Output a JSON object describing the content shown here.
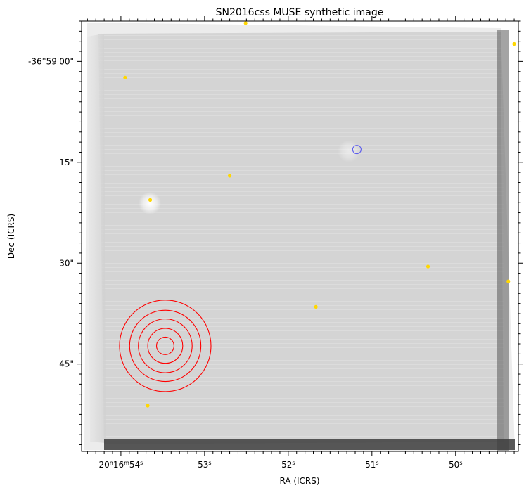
{
  "chart_data": {
    "type": "image",
    "title": "SN2016css MUSE synthetic image",
    "xlabel": "RA (ICRS)",
    "ylabel": "Dec (ICRS)",
    "colormap": "grayscale",
    "x_ticks": [
      {
        "h": "20",
        "m": "16",
        "s": "54",
        "sec": 54
      },
      {
        "s": "53",
        "sec": 53
      },
      {
        "s": "52",
        "sec": 52
      },
      {
        "s": "51",
        "sec": 51
      },
      {
        "s": "50",
        "sec": 50
      }
    ],
    "y_ticks": [
      {
        "label": "-36°59'00\"",
        "arcsec": 0
      },
      {
        "label": "15\"",
        "arcsec": 15
      },
      {
        "label": "30\"",
        "arcsec": 30
      },
      {
        "label": "45\"",
        "arcsec": 45
      }
    ],
    "x_range_sec": [
      54.47,
      49.25
    ],
    "y_range_arcsec": [
      -6.0,
      58.0
    ],
    "sources": [
      {
        "ra_sec": 52.51,
        "dec_arcsec": -5.7
      },
      {
        "ra_sec": 49.3,
        "dec_arcsec": -2.6
      },
      {
        "ra_sec": 53.95,
        "dec_arcsec": 2.4
      },
      {
        "ra_sec": 52.7,
        "dec_arcsec": 17.0
      },
      {
        "ra_sec": 53.65,
        "dec_arcsec": 20.6
      },
      {
        "ra_sec": 50.33,
        "dec_arcsec": 30.5
      },
      {
        "ra_sec": 49.37,
        "dec_arcsec": 32.7
      },
      {
        "ra_sec": 51.67,
        "dec_arcsec": 36.5
      },
      {
        "ra_sec": 53.68,
        "dec_arcsec": 51.2
      }
    ],
    "sn_position": {
      "ra_sec": 51.18,
      "dec_arcsec": 13.1
    },
    "reference_rings": {
      "ra_sec": 53.47,
      "dec_arcsec": 42.3,
      "radii_arcsec": [
        1.3,
        2.6,
        4.0,
        5.3,
        6.8
      ]
    },
    "colors": {
      "sources": "#ffd700",
      "sn_marker": "#5a5aee",
      "rings": "#ff0000"
    }
  }
}
